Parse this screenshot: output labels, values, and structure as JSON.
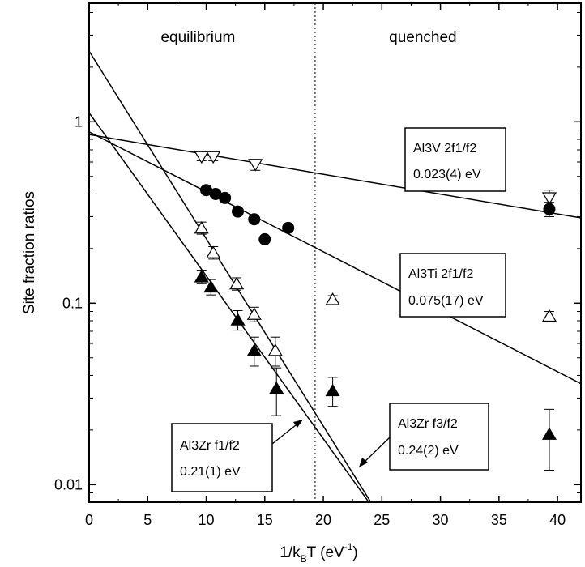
{
  "chart_data": {
    "type": "scatter",
    "xlabel": "1/k",
    "xlabel_sub": "B",
    "xlabel_mid": "T (eV",
    "xlabel_sup": "-1",
    "xlabel_end": ")",
    "ylabel": "Site fraction ratios",
    "xlim": [
      0,
      42
    ],
    "ylim": [
      0.008,
      4.5
    ],
    "yscale": "log",
    "x_ticks": [
      0,
      5,
      10,
      15,
      20,
      25,
      30,
      35,
      40
    ],
    "x_tick_labels": [
      "0",
      "5",
      "10",
      "15",
      "20",
      "25",
      "30",
      "35",
      "40"
    ],
    "y_ticks": [
      0.01,
      0.1,
      1
    ],
    "y_tick_labels": [
      "0.01",
      "0.1",
      "1"
    ],
    "divider_x": 19.3,
    "region_labels": {
      "left": "equilibrium",
      "right": "quenched"
    },
    "series": [
      {
        "marker": "triangle-down-open",
        "points": [
          [
            9.6,
            0.64,
            0.03
          ],
          [
            10.6,
            0.64,
            0.03
          ],
          [
            14.2,
            0.58,
            0.04
          ],
          [
            39.3,
            0.38,
            0.04
          ]
        ]
      },
      {
        "marker": "circle-filled",
        "points": [
          [
            10.0,
            0.42,
            0.0
          ],
          [
            10.8,
            0.4,
            0.0
          ],
          [
            11.6,
            0.38,
            0.0
          ],
          [
            12.7,
            0.32,
            0.0
          ],
          [
            14.1,
            0.29,
            0.0
          ],
          [
            15.0,
            0.225,
            0.0
          ],
          [
            17.0,
            0.26,
            0.0
          ],
          [
            39.3,
            0.33,
            0.03
          ]
        ]
      },
      {
        "marker": "triangle-up-open",
        "points": [
          [
            9.6,
            0.26,
            0.02
          ],
          [
            10.6,
            0.19,
            0.015
          ],
          [
            12.6,
            0.128,
            0.01
          ],
          [
            14.1,
            0.087,
            0.008
          ],
          [
            15.9,
            0.055,
            0.01
          ],
          [
            20.8,
            0.105,
            0.005
          ],
          [
            39.3,
            0.085,
            0.005
          ]
        ]
      },
      {
        "marker": "triangle-up-filled",
        "points": [
          [
            9.6,
            0.14,
            0.012
          ],
          [
            10.4,
            0.123,
            0.012
          ],
          [
            12.7,
            0.081,
            0.01
          ],
          [
            14.1,
            0.055,
            0.01
          ],
          [
            16.0,
            0.034,
            0.01
          ],
          [
            20.8,
            0.033,
            0.006
          ],
          [
            39.3,
            0.019,
            0.007
          ]
        ]
      }
    ],
    "fit_lines": [
      {
        "x0": 0,
        "y0": 0.85,
        "x1": 42,
        "y1": 0.295
      },
      {
        "x0": 0,
        "y0": 0.88,
        "x1": 42,
        "y1": 0.036
      },
      {
        "x0": 0,
        "y0": 1.12,
        "x1": 24.4,
        "y1": 0.0072
      },
      {
        "x0": 0,
        "y0": 2.45,
        "x1": 24.5,
        "y1": 0.0072
      }
    ],
    "annotations": [
      {
        "line1": "Al3V  2f1/f2",
        "line2": "0.023(4) eV"
      },
      {
        "line1": "Al3Ti  2f1/f2",
        "line2": "0.075(17) eV"
      },
      {
        "line1": "Al3Zr f1/f2",
        "line2": "0.21(1) eV"
      },
      {
        "line1": "Al3Zr f3/f2",
        "line2": "0.24(2) eV"
      }
    ]
  }
}
